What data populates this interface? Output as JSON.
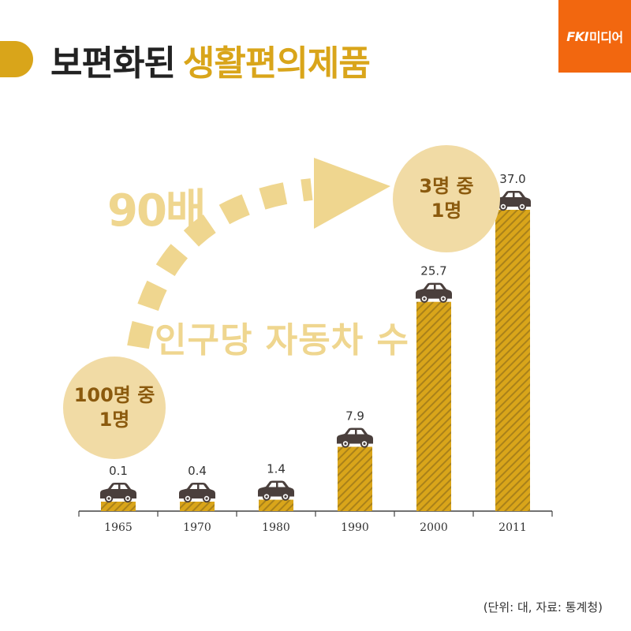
{
  "title": {
    "normal": "보편화된",
    "highlight": "생활편의제품"
  },
  "logo": {
    "brand": "FKI",
    "media": "미디어"
  },
  "annotations": {
    "multiplier": "90배",
    "subject": "인구당 자동차 수",
    "start_circle": "100명 중\n1명",
    "end_circle": "3명 중\n1명"
  },
  "footnote": "(단위: 대, 자료: 통계청)",
  "colors": {
    "accent": "#d9a51a",
    "light_accent": "#efd68f",
    "logo": "#f2670f",
    "car": "#4a3f3c"
  },
  "icons": [
    "car-icon",
    "dashed-arrow-icon"
  ],
  "chart_data": {
    "type": "bar",
    "categories": [
      "1965",
      "1970",
      "1980",
      "1990",
      "2000",
      "2011"
    ],
    "values": [
      0.1,
      0.4,
      1.4,
      7.9,
      25.7,
      37.0
    ],
    "value_labels": [
      "0.1",
      "0.4",
      "1.4",
      "7.9",
      "25.7",
      "37.0"
    ],
    "unit": "대",
    "source": "통계청",
    "title": "",
    "xlabel": "",
    "ylabel": "",
    "grid": false,
    "bar_pattern": "diagonal-hatch"
  }
}
